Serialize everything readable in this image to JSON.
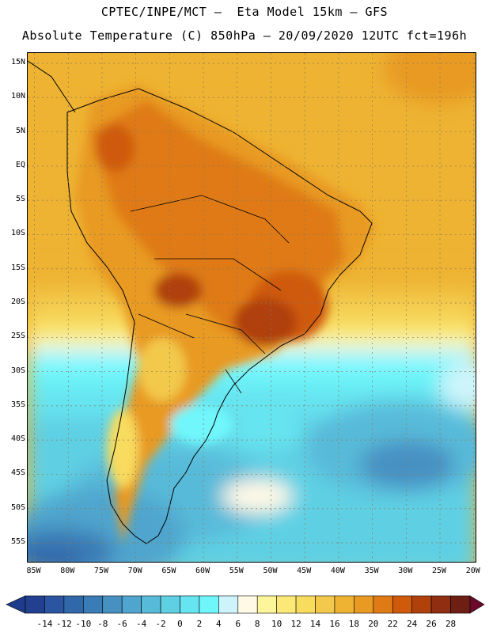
{
  "header": {
    "title_line1": "CPTEC/INPE/MCT –  Eta Model 15km – GFS",
    "title_line2": "Absolute Temperature (C) 850hPa – 20/09/2020 12UTC fct=196h"
  },
  "map": {
    "variable": "Absolute Temperature (C) 850hPa",
    "latitude_labels": [
      "15N",
      "10N",
      "5N",
      "EQ",
      "5S",
      "10S",
      "15S",
      "20S",
      "25S",
      "30S",
      "35S",
      "40S",
      "45S",
      "50S",
      "55S"
    ],
    "longitude_labels": [
      "85W",
      "80W",
      "75W",
      "70W",
      "65W",
      "60W",
      "55W",
      "50W",
      "45W",
      "40W",
      "35W",
      "30W",
      "25W",
      "20W"
    ],
    "lat_range": [
      16.5,
      -58
    ],
    "lon_range": [
      -86,
      -19.5
    ]
  },
  "colorbar": {
    "labels": [
      "-14",
      "-12",
      "-10",
      "-8",
      "-6",
      "-4",
      "-2",
      "0",
      "2",
      "4",
      "6",
      "8",
      "10",
      "12",
      "14",
      "16",
      "18",
      "20",
      "22",
      "24",
      "26",
      "28"
    ],
    "colors": {
      "below": "#1e3c8c",
      "bins": [
        "#233f8f",
        "#2b55a0",
        "#3168aa",
        "#3a7cb6",
        "#4690c2",
        "#4fa5ce",
        "#58bad9",
        "#5fd0e4",
        "#66e4f0",
        "#6ff6fb",
        "#cdf4fb",
        "#fff9e6",
        "#fdf59a",
        "#fbe877",
        "#f8dc5e",
        "#f3c94b",
        "#eeb332",
        "#e89a22",
        "#df7a14",
        "#cf5a0c",
        "#b0410a",
        "#8f2e10",
        "#6e1f14"
      ],
      "above": "#6b0a2a"
    }
  }
}
